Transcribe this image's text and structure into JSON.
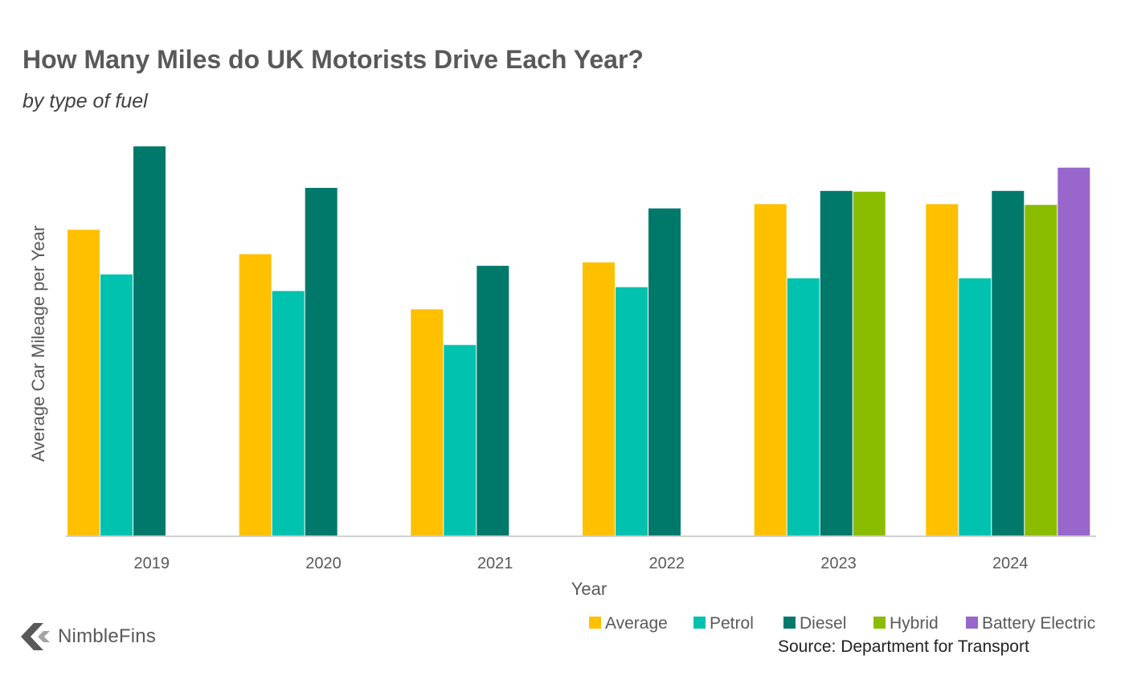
{
  "title": "How Many Miles do UK Motorists Drive Each Year?",
  "subtitle": "by type of fuel",
  "source": "Source: Department for Transport",
  "logo": {
    "text": "NimbleFins",
    "icon": "chevron-left-icon"
  },
  "chart_data": {
    "type": "bar",
    "xlabel": "Year",
    "ylabel": "Average Car Mileage per Year",
    "categories": [
      "2019",
      "2020",
      "2021",
      "2022",
      "2023",
      "2024"
    ],
    "ylim": [
      0,
      12000
    ],
    "y_tick_labels_shown": false,
    "legend_position": "bottom-right",
    "series": [
      {
        "name": "Average",
        "color": "#FFC000",
        "values": [
          7900,
          7270,
          5850,
          7060,
          8560,
          8560
        ]
      },
      {
        "name": "Petrol",
        "color": "#00C2AE",
        "values": [
          6750,
          6320,
          4930,
          6420,
          6650,
          6650
        ]
      },
      {
        "name": "Diesel",
        "color": "#00796B",
        "values": [
          10050,
          8980,
          6970,
          8450,
          8900,
          8900
        ]
      },
      {
        "name": "Hybrid",
        "color": "#8ABD00",
        "values": [
          null,
          null,
          null,
          null,
          8880,
          8540
        ]
      },
      {
        "name": "Battery Electric",
        "color": "#9966CC",
        "values": [
          null,
          null,
          null,
          null,
          null,
          9500
        ]
      }
    ]
  }
}
